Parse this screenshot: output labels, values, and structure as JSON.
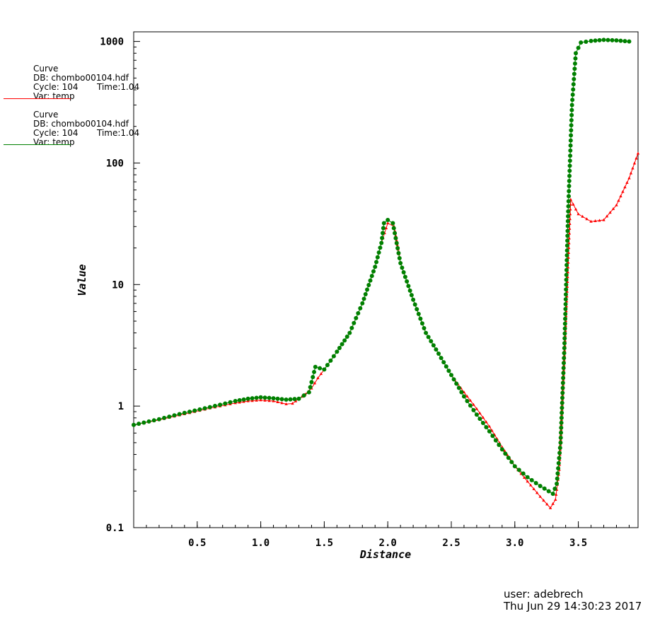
{
  "legend": [
    {
      "title": "Curve",
      "db": "DB: chombo00104.hdf",
      "cycle": "Cycle: 104",
      "time": "Time:1.04",
      "var": "Var: temp",
      "color": "#ff0000"
    },
    {
      "title": "Curve",
      "db": "DB: chombo00104.hdf",
      "cycle": "Cycle: 104",
      "time": "Time:1.04",
      "var": "Var: temp",
      "color": "#008000"
    }
  ],
  "footer": {
    "user": "user: adebrech",
    "timestamp": "Thu Jun 29 14:30:23 2017"
  },
  "chart_data": {
    "type": "line",
    "xlabel": "Distance",
    "ylabel": "Value",
    "xlim": [
      0,
      3.97
    ],
    "ylim": [
      0.1,
      1200
    ],
    "yscale": "log",
    "xticks": [
      "0.5",
      "1.0",
      "1.5",
      "2.0",
      "2.5",
      "3.0",
      "3.5"
    ],
    "yticks": [
      "0.1",
      "1",
      "10",
      "100",
      "1000"
    ],
    "grid": false,
    "series": [
      {
        "color": "#ff0000",
        "marker": "triangle",
        "points": [
          [
            0.0,
            0.7
          ],
          [
            0.2,
            0.77
          ],
          [
            0.4,
            0.86
          ],
          [
            0.6,
            0.96
          ],
          [
            0.8,
            1.06
          ],
          [
            0.9,
            1.1
          ],
          [
            1.0,
            1.12
          ],
          [
            1.1,
            1.1
          ],
          [
            1.2,
            1.04
          ],
          [
            1.25,
            1.05
          ],
          [
            1.3,
            1.15
          ],
          [
            1.35,
            1.25
          ],
          [
            1.4,
            1.4
          ],
          [
            1.45,
            1.7
          ],
          [
            1.5,
            2.0
          ],
          [
            1.6,
            2.8
          ],
          [
            1.7,
            4.0
          ],
          [
            1.8,
            7.0
          ],
          [
            1.9,
            14.0
          ],
          [
            1.95,
            22.0
          ],
          [
            2.0,
            32.0
          ],
          [
            2.05,
            30.0
          ],
          [
            2.1,
            15.0
          ],
          [
            2.2,
            7.5
          ],
          [
            2.3,
            4.0
          ],
          [
            2.4,
            2.7
          ],
          [
            2.5,
            1.8
          ],
          [
            2.6,
            1.3
          ],
          [
            2.7,
            0.95
          ],
          [
            2.8,
            0.68
          ],
          [
            2.9,
            0.46
          ],
          [
            3.0,
            0.32
          ],
          [
            3.1,
            0.24
          ],
          [
            3.2,
            0.18
          ],
          [
            3.28,
            0.145
          ],
          [
            3.32,
            0.17
          ],
          [
            3.35,
            0.3
          ],
          [
            3.38,
            1.5
          ],
          [
            3.41,
            8.0
          ],
          [
            3.44,
            50.0
          ],
          [
            3.5,
            38.0
          ],
          [
            3.6,
            33.0
          ],
          [
            3.7,
            34.0
          ],
          [
            3.8,
            45.0
          ],
          [
            3.9,
            75.0
          ],
          [
            3.97,
            120.0
          ]
        ]
      },
      {
        "color": "#008000",
        "marker": "circle",
        "points": [
          [
            0.0,
            0.7
          ],
          [
            0.2,
            0.78
          ],
          [
            0.4,
            0.88
          ],
          [
            0.6,
            0.98
          ],
          [
            0.8,
            1.1
          ],
          [
            0.9,
            1.15
          ],
          [
            1.0,
            1.18
          ],
          [
            1.1,
            1.16
          ],
          [
            1.2,
            1.13
          ],
          [
            1.3,
            1.15
          ],
          [
            1.38,
            1.3
          ],
          [
            1.43,
            2.1
          ],
          [
            1.5,
            2.0
          ],
          [
            1.6,
            2.8
          ],
          [
            1.7,
            4.0
          ],
          [
            1.8,
            7.0
          ],
          [
            1.9,
            14.0
          ],
          [
            1.95,
            22.0
          ],
          [
            1.97,
            32.0
          ],
          [
            2.0,
            34.0
          ],
          [
            2.04,
            32.0
          ],
          [
            2.1,
            15.0
          ],
          [
            2.2,
            7.5
          ],
          [
            2.3,
            4.0
          ],
          [
            2.4,
            2.7
          ],
          [
            2.5,
            1.8
          ],
          [
            2.6,
            1.2
          ],
          [
            2.7,
            0.85
          ],
          [
            2.8,
            0.62
          ],
          [
            2.9,
            0.44
          ],
          [
            3.0,
            0.32
          ],
          [
            3.1,
            0.26
          ],
          [
            3.2,
            0.22
          ],
          [
            3.3,
            0.19
          ],
          [
            3.33,
            0.23
          ],
          [
            3.36,
            0.5
          ],
          [
            3.39,
            3.0
          ],
          [
            3.42,
            40.0
          ],
          [
            3.45,
            300.0
          ],
          [
            3.48,
            800.0
          ],
          [
            3.52,
            980.0
          ],
          [
            3.6,
            1010.0
          ],
          [
            3.7,
            1030.0
          ],
          [
            3.8,
            1020.0
          ],
          [
            3.9,
            1000.0
          ]
        ]
      }
    ]
  }
}
